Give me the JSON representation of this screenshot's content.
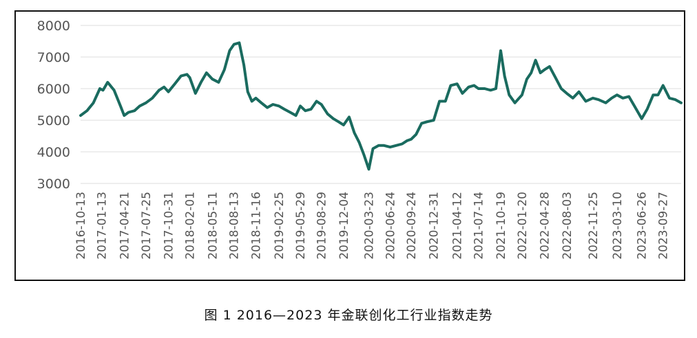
{
  "caption": "图 1  2016—2023 年金联创化工行业指数走势",
  "colors": {
    "line": "#1a6b5f",
    "grid": "#dcdcdc",
    "tick": "#555555",
    "frame": "#111111"
  },
  "chart_data": {
    "type": "line",
    "title": "",
    "xlabel": "",
    "ylabel": "",
    "ylim": [
      3000,
      8000
    ],
    "yticks": [
      "3000",
      "4000",
      "5000",
      "6000",
      "7000",
      "8000"
    ],
    "grid": "horizontal",
    "x_tick_labels": [
      "2016-10-13",
      "2017-01-13",
      "2017-04-21",
      "2017-07-25",
      "2017-10-31",
      "2018-02-01",
      "2018-05-11",
      "2018-08-13",
      "2018-11-16",
      "2019-02-25",
      "2019-05-29",
      "2019-08-29",
      "2019-12-04",
      "2020-03-23",
      "2020-06-24",
      "2020-09-24",
      "2020-12-31",
      "2021-04-12",
      "2021-07-14",
      "2021-10-19",
      "2022-01-20",
      "2022-04-28",
      "2022-08-03",
      "2022-11-25",
      "2023-03-10",
      "2023-06-26",
      "2023-09-27"
    ],
    "series": [
      {
        "x": [
          "2016-10-13",
          "2016-11-10",
          "2016-12-08",
          "2017-01-05",
          "2017-01-19",
          "2017-02-08",
          "2017-03-08",
          "2017-04-05",
          "2017-04-21",
          "2017-05-10",
          "2017-06-05",
          "2017-06-28",
          "2017-07-25",
          "2017-08-22",
          "2017-09-20",
          "2017-10-12",
          "2017-10-31",
          "2017-11-28",
          "2017-12-25",
          "2018-01-20",
          "2018-02-01",
          "2018-02-26",
          "2018-03-22",
          "2018-04-15",
          "2018-05-11",
          "2018-06-07",
          "2018-07-02",
          "2018-07-25",
          "2018-08-13",
          "2018-09-05",
          "2018-09-25",
          "2018-10-12",
          "2018-10-30",
          "2018-11-16",
          "2018-12-10",
          "2019-01-05",
          "2019-01-30",
          "2019-02-25",
          "2019-03-20",
          "2019-04-15",
          "2019-05-10",
          "2019-05-29",
          "2019-06-20",
          "2019-07-15",
          "2019-08-08",
          "2019-08-29",
          "2019-09-25",
          "2019-10-20",
          "2019-11-12",
          "2019-12-04",
          "2019-12-28",
          "2020-01-20",
          "2020-02-10",
          "2020-03-02",
          "2020-03-23",
          "2020-04-10",
          "2020-05-05",
          "2020-05-28",
          "2020-06-24",
          "2020-07-20",
          "2020-08-15",
          "2020-09-05",
          "2020-09-24",
          "2020-10-15",
          "2020-11-08",
          "2020-12-01",
          "2020-12-31",
          "2021-01-25",
          "2021-02-20",
          "2021-03-15",
          "2021-04-12",
          "2021-05-05",
          "2021-06-01",
          "2021-06-25",
          "2021-07-14",
          "2021-08-10",
          "2021-09-05",
          "2021-09-28",
          "2021-10-19",
          "2021-11-05",
          "2021-11-25",
          "2021-12-20",
          "2022-01-20",
          "2022-02-10",
          "2022-03-01",
          "2022-03-20",
          "2022-04-10",
          "2022-04-28",
          "2022-05-20",
          "2022-06-15",
          "2022-07-10",
          "2022-08-03",
          "2022-08-30",
          "2022-09-25",
          "2022-10-25",
          "2022-11-25",
          "2022-12-20",
          "2023-01-20",
          "2023-02-15",
          "2023-03-10",
          "2023-04-05",
          "2023-05-01",
          "2023-05-25",
          "2023-06-26",
          "2023-07-20",
          "2023-08-15",
          "2023-09-05",
          "2023-09-27",
          "2023-10-25",
          "2023-11-20",
          "2023-12-15"
        ],
        "values": [
          5150,
          5300,
          5550,
          6000,
          5950,
          6200,
          5950,
          5450,
          5150,
          5250,
          5300,
          5450,
          5550,
          5700,
          5950,
          6050,
          5900,
          6150,
          6400,
          6450,
          6350,
          5850,
          6200,
          6500,
          6300,
          6200,
          6600,
          7200,
          7400,
          7450,
          6750,
          5900,
          5600,
          5700,
          5550,
          5400,
          5500,
          5450,
          5350,
          5250,
          5150,
          5450,
          5300,
          5350,
          5600,
          5500,
          5200,
          5050,
          4950,
          4850,
          5100,
          4600,
          4300,
          3900,
          3450,
          4100,
          4200,
          4200,
          4150,
          4200,
          4250,
          4350,
          4400,
          4550,
          4900,
          4950,
          5000,
          5600,
          5600,
          6100,
          6150,
          5850,
          6050,
          6100,
          6000,
          6000,
          5950,
          6000,
          7200,
          6400,
          5800,
          5550,
          5800,
          6300,
          6500,
          6900,
          6500,
          6600,
          6700,
          6350,
          6000,
          5850,
          5700,
          5900,
          5600,
          5700,
          5650,
          5550,
          5700,
          5800,
          5700,
          5750,
          5450,
          5050,
          5350,
          5800,
          5800,
          6100,
          5700,
          5650,
          5550
        ]
      }
    ]
  }
}
